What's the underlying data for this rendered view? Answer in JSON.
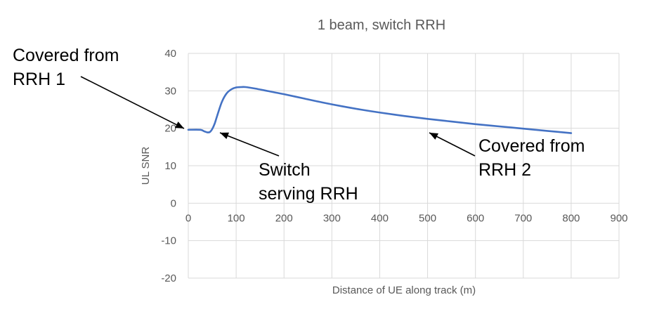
{
  "chart_data": {
    "type": "line",
    "title": "1 beam, switch RRH",
    "xlabel": "Distance of UE along track (m)",
    "ylabel": "UL SNR",
    "xlim": [
      0,
      900
    ],
    "ylim": [
      -20,
      40
    ],
    "xticks": [
      0,
      100,
      200,
      300,
      400,
      500,
      600,
      700,
      800,
      900
    ],
    "yticks": [
      -20,
      -10,
      0,
      10,
      20,
      30,
      40
    ],
    "grid": true,
    "legend": "none",
    "series_color": "#4472c4",
    "series": [
      {
        "x": [
          0,
          25,
          33,
          40,
          45,
          50,
          55,
          60,
          70,
          80,
          90,
          100,
          110,
          120,
          140,
          160,
          180,
          200,
          240,
          280,
          320,
          360,
          400,
          450,
          500,
          550,
          600,
          650,
          700,
          750,
          800
        ],
        "y": [
          19.6,
          19.6,
          19.2,
          18.9,
          19.0,
          19.8,
          21.2,
          23.2,
          27.0,
          29.3,
          30.4,
          30.9,
          31.0,
          31.0,
          30.6,
          30.1,
          29.6,
          29.1,
          28.0,
          26.9,
          25.9,
          25.0,
          24.2,
          23.3,
          22.5,
          21.8,
          21.1,
          20.5,
          19.9,
          19.3,
          18.7
        ]
      }
    ],
    "annotations": [
      {
        "id": "rrh1",
        "lines": [
          "Covered from",
          "RRH 1"
        ],
        "target": [
          0,
          20
        ]
      },
      {
        "id": "switch",
        "lines": [
          "Switch",
          "serving RRH"
        ],
        "target": [
          55,
          19
        ]
      },
      {
        "id": "rrh2",
        "lines": [
          "Covered from",
          "RRH 2"
        ],
        "target": [
          500,
          19
        ]
      }
    ]
  }
}
